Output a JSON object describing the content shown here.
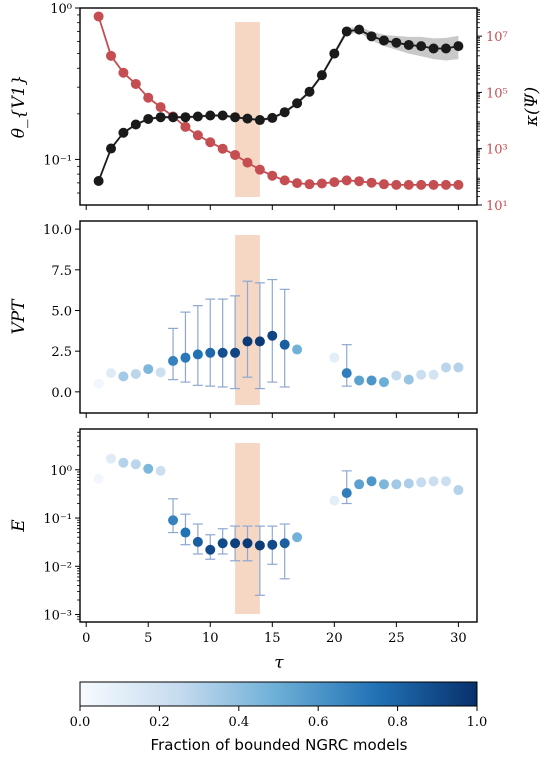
{
  "colors": {
    "black_series": "#1a1a1a",
    "red_series": "#c44e52",
    "band": "#f2c9b0",
    "err": "#8fa8d2",
    "cmap_lo": "#f7fbff",
    "cmap_hi": "#08306b"
  },
  "x_ticks": [
    "0",
    "5",
    "10",
    "15",
    "20",
    "25",
    "30"
  ],
  "shaded_band": [
    12,
    14
  ],
  "colorbar": {
    "label": "Fraction of bounded NGRC models",
    "ticks": [
      "0.0",
      "0.2",
      "0.4",
      "0.6",
      "0.8",
      "1.0"
    ]
  },
  "chart_data": [
    {
      "type": "line",
      "ylabel": "θ_{V1}",
      "y2label": "κ(Ψ)",
      "yscale": "log",
      "ylim": [
        0.05,
        1.0
      ],
      "y2lim": [
        10,
        100000000
      ],
      "yticks": [
        "10⁻¹",
        "10⁰"
      ],
      "y2ticks": [
        "10¹",
        "10³",
        "10⁵",
        "10⁷"
      ],
      "series": [
        {
          "axis": "left",
          "x": [
            1,
            2,
            3,
            4,
            5,
            6,
            7,
            8,
            9,
            10,
            11,
            12,
            13,
            14,
            15,
            16,
            17,
            18,
            19,
            20,
            21,
            22,
            23,
            24,
            25,
            26,
            27,
            28,
            29,
            30
          ],
          "values": [
            0.072,
            0.118,
            0.15,
            0.17,
            0.185,
            0.19,
            0.19,
            0.19,
            0.192,
            0.195,
            0.195,
            0.19,
            0.186,
            0.182,
            0.188,
            0.205,
            0.235,
            0.28,
            0.36,
            0.5,
            0.7,
            0.72,
            0.65,
            0.61,
            0.59,
            0.57,
            0.56,
            0.54,
            0.54,
            0.56
          ],
          "band_low": [
            0.072,
            0.115,
            0.147,
            0.167,
            0.181,
            0.186,
            0.186,
            0.186,
            0.188,
            0.191,
            0.191,
            0.186,
            0.182,
            0.178,
            0.184,
            0.2,
            0.229,
            0.272,
            0.348,
            0.48,
            0.67,
            0.69,
            0.61,
            0.56,
            0.53,
            0.5,
            0.48,
            0.46,
            0.45,
            0.46
          ],
          "band_high": [
            0.072,
            0.121,
            0.153,
            0.173,
            0.189,
            0.194,
            0.194,
            0.194,
            0.196,
            0.199,
            0.199,
            0.194,
            0.19,
            0.186,
            0.192,
            0.21,
            0.241,
            0.288,
            0.372,
            0.52,
            0.735,
            0.755,
            0.7,
            0.665,
            0.655,
            0.645,
            0.645,
            0.63,
            0.635,
            0.655
          ]
        },
        {
          "axis": "right",
          "x": [
            1,
            2,
            3,
            4,
            5,
            6,
            7,
            8,
            9,
            10,
            11,
            12,
            13,
            14,
            15,
            16,
            17,
            18,
            19,
            20,
            21,
            22,
            23,
            24,
            25,
            26,
            27,
            28,
            29,
            30
          ],
          "values": [
            50000000,
            2000000,
            500000,
            200000,
            65000,
            30000,
            14000,
            6000,
            3000,
            1700,
            1000,
            600,
            320,
            180,
            110,
            75,
            60,
            55,
            58,
            65,
            75,
            70,
            62,
            55,
            52,
            52,
            52,
            52,
            52,
            52
          ]
        }
      ]
    },
    {
      "type": "scatter",
      "ylabel": "VPT",
      "ylim": [
        -1.3,
        10.5
      ],
      "yticks": [
        "0.0",
        "2.5",
        "5.0",
        "7.5",
        "10.0"
      ],
      "points": [
        {
          "x": 1,
          "y": 0.5,
          "f": 0.03
        },
        {
          "x": 2,
          "y": 1.15,
          "f": 0.12
        },
        {
          "x": 3,
          "y": 0.95,
          "f": 0.35
        },
        {
          "x": 4,
          "y": 1.1,
          "f": 0.28
        },
        {
          "x": 5,
          "y": 1.4,
          "f": 0.45
        },
        {
          "x": 6,
          "y": 1.2,
          "f": 0.22
        },
        {
          "x": 7,
          "y": 1.9,
          "f": 0.68,
          "lo": 0.75,
          "hi": 3.9
        },
        {
          "x": 8,
          "y": 2.1,
          "f": 0.72,
          "lo": 0.6,
          "hi": 4.9
        },
        {
          "x": 9,
          "y": 2.3,
          "f": 0.75,
          "lo": 0.4,
          "hi": 5.3
        },
        {
          "x": 10,
          "y": 2.4,
          "f": 0.78,
          "lo": 0.35,
          "hi": 5.7
        },
        {
          "x": 11,
          "y": 2.4,
          "f": 0.88,
          "lo": 0.3,
          "hi": 5.7
        },
        {
          "x": 12,
          "y": 2.4,
          "f": 0.92,
          "lo": 0.2,
          "hi": 5.9
        },
        {
          "x": 13,
          "y": 3.1,
          "f": 0.96,
          "lo": 0.9,
          "hi": 6.8
        },
        {
          "x": 14,
          "y": 3.1,
          "f": 0.96,
          "lo": 0.2,
          "hi": 6.7
        },
        {
          "x": 15,
          "y": 3.45,
          "f": 0.92,
          "lo": 0.6,
          "hi": 6.9
        },
        {
          "x": 16,
          "y": 2.9,
          "f": 0.82,
          "lo": 0.3,
          "hi": 6.3
        },
        {
          "x": 17,
          "y": 2.6,
          "f": 0.48
        },
        {
          "x": 20,
          "y": 2.1,
          "f": 0.1
        },
        {
          "x": 21,
          "y": 1.15,
          "f": 0.7,
          "lo": 0.35,
          "hi": 2.9
        },
        {
          "x": 22,
          "y": 0.7,
          "f": 0.55
        },
        {
          "x": 23,
          "y": 0.7,
          "f": 0.6
        },
        {
          "x": 24,
          "y": 0.6,
          "f": 0.5
        },
        {
          "x": 25,
          "y": 1.0,
          "f": 0.25
        },
        {
          "x": 26,
          "y": 0.75,
          "f": 0.38
        },
        {
          "x": 27,
          "y": 1.05,
          "f": 0.22
        },
        {
          "x": 28,
          "y": 1.05,
          "f": 0.18
        },
        {
          "x": 29,
          "y": 1.5,
          "f": 0.28
        },
        {
          "x": 30,
          "y": 1.5,
          "f": 0.3
        }
      ]
    },
    {
      "type": "scatter",
      "ylabel": "E",
      "yscale": "log",
      "ylim": [
        0.0007,
        7
      ],
      "yticks": [
        "10⁻³",
        "10⁻²",
        "10⁻¹",
        "10⁰"
      ],
      "points": [
        {
          "x": 1,
          "y": 0.65,
          "f": 0.03
        },
        {
          "x": 2,
          "y": 1.7,
          "f": 0.12
        },
        {
          "x": 3,
          "y": 1.4,
          "f": 0.3
        },
        {
          "x": 4,
          "y": 1.3,
          "f": 0.28
        },
        {
          "x": 5,
          "y": 1.05,
          "f": 0.45
        },
        {
          "x": 6,
          "y": 0.95,
          "f": 0.22
        },
        {
          "x": 7,
          "y": 0.09,
          "f": 0.68,
          "lo": 0.05,
          "hi": 0.25
        },
        {
          "x": 8,
          "y": 0.05,
          "f": 0.75,
          "lo": 0.028,
          "hi": 0.12
        },
        {
          "x": 9,
          "y": 0.032,
          "f": 0.82,
          "lo": 0.018,
          "hi": 0.075
        },
        {
          "x": 10,
          "y": 0.022,
          "f": 0.9,
          "lo": 0.014,
          "hi": 0.045
        },
        {
          "x": 11,
          "y": 0.03,
          "f": 0.9,
          "lo": 0.018,
          "hi": 0.06
        },
        {
          "x": 12,
          "y": 0.03,
          "f": 0.94,
          "lo": 0.013,
          "hi": 0.068
        },
        {
          "x": 13,
          "y": 0.03,
          "f": 0.96,
          "lo": 0.013,
          "hi": 0.068
        },
        {
          "x": 14,
          "y": 0.027,
          "f": 0.96,
          "lo": 0.0025,
          "hi": 0.068
        },
        {
          "x": 15,
          "y": 0.028,
          "f": 0.9,
          "lo": 0.011,
          "hi": 0.068
        },
        {
          "x": 16,
          "y": 0.03,
          "f": 0.82,
          "lo": 0.0055,
          "hi": 0.075
        },
        {
          "x": 17,
          "y": 0.04,
          "f": 0.48
        },
        {
          "x": 20,
          "y": 0.23,
          "f": 0.1
        },
        {
          "x": 21,
          "y": 0.33,
          "f": 0.7,
          "lo": 0.2,
          "hi": 0.95
        },
        {
          "x": 22,
          "y": 0.5,
          "f": 0.55
        },
        {
          "x": 23,
          "y": 0.58,
          "f": 0.6
        },
        {
          "x": 24,
          "y": 0.5,
          "f": 0.45
        },
        {
          "x": 25,
          "y": 0.5,
          "f": 0.35
        },
        {
          "x": 26,
          "y": 0.52,
          "f": 0.32
        },
        {
          "x": 27,
          "y": 0.55,
          "f": 0.25
        },
        {
          "x": 28,
          "y": 0.58,
          "f": 0.22
        },
        {
          "x": 29,
          "y": 0.58,
          "f": 0.22
        },
        {
          "x": 30,
          "y": 0.38,
          "f": 0.3
        }
      ]
    }
  ],
  "x_label": "τ"
}
